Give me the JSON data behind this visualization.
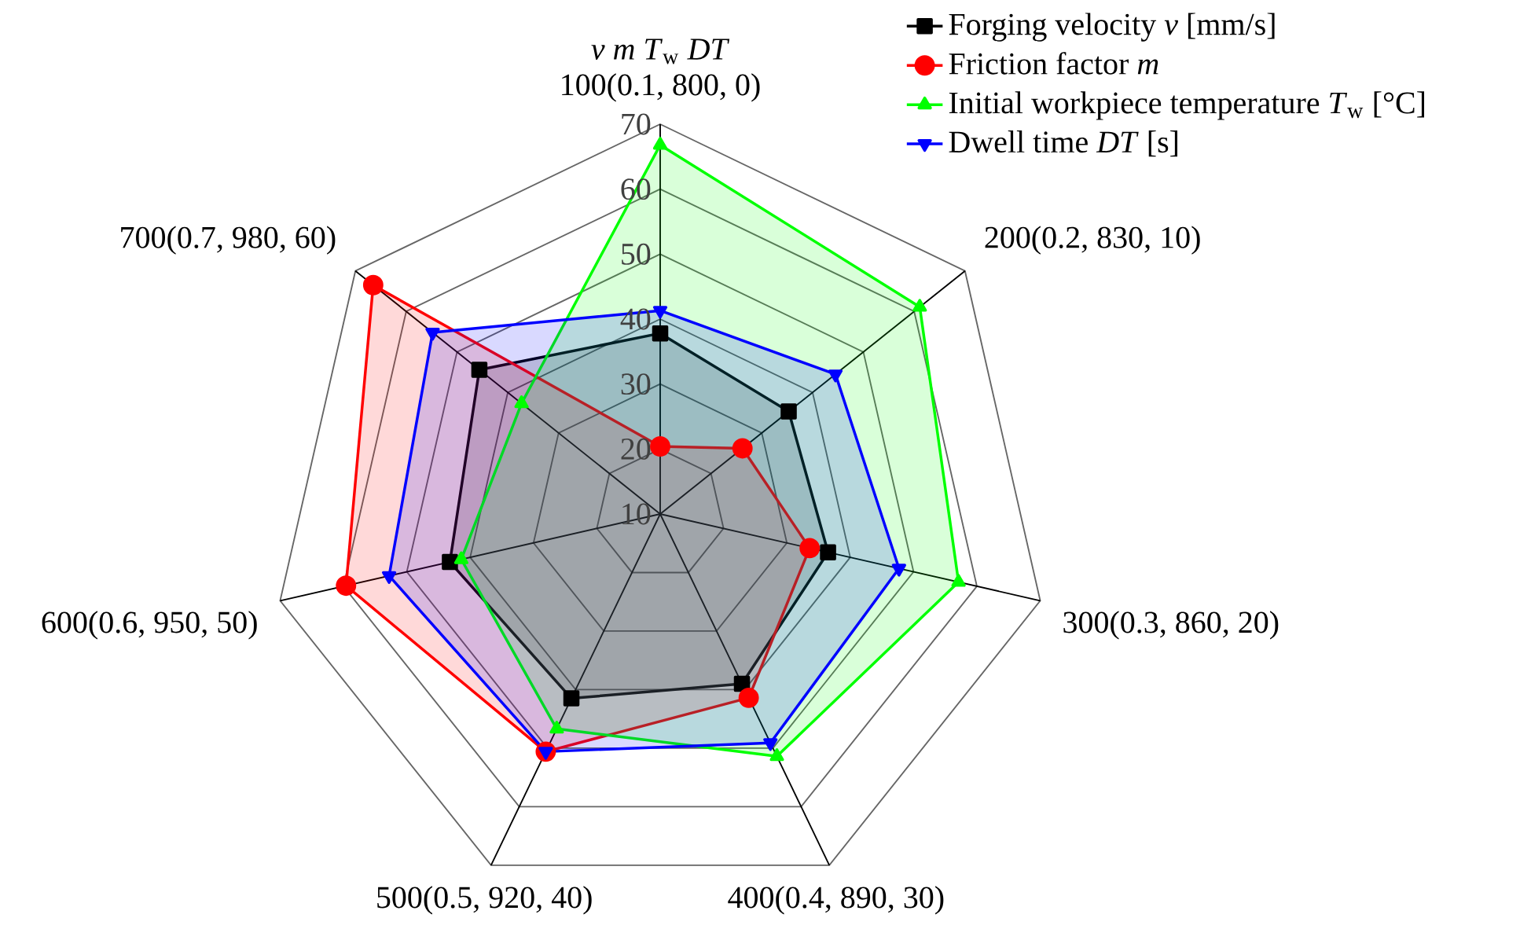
{
  "chart_data": {
    "type": "radar",
    "categories": [
      "100(0.1, 800, 0)",
      "200(0.2, 830, 10)",
      "300(0.3, 860, 20)",
      "400(0.4, 890, 30)",
      "500(0.5, 920, 40)",
      "600(0.6, 950, 50)",
      "700(0.7, 980, 60)"
    ],
    "series": [
      {
        "name": "Forging velocity *v* [mm/s]",
        "color": "#000000",
        "marker": "square",
        "values": [
          37.8,
          35.3,
          36.5,
          39.0,
          41.5,
          43.2,
          45.6
        ]
      },
      {
        "name": "Friction factor *m*",
        "color": "#ff0000",
        "marker": "circle",
        "values": [
          20.4,
          26.2,
          33.6,
          41.4,
          50.6,
          59.6,
          66.5
        ]
      },
      {
        "name": "Initial workpiece temperature *T*$_{w}$ [°C]",
        "color": "#00ff00",
        "marker": "triangle",
        "values": [
          66.8,
          61.1,
          57.1,
          51.4,
          46.7,
          41.4,
          37.3
        ]
      },
      {
        "name": "Dwell time *DT* [s]",
        "color": "#0000ff",
        "marker": "triangle-down",
        "values": [
          41.3,
          44.5,
          47.7,
          49.1,
          50.6,
          52.8,
          54.8
        ]
      }
    ],
    "ylim": [
      10,
      70
    ],
    "yticks": [
      10,
      20,
      30,
      40,
      50,
      60,
      70
    ],
    "grid": true,
    "legend": "top right",
    "annotations": [
      "*v* *m* *T*$_{w}$ *DT*"
    ]
  }
}
